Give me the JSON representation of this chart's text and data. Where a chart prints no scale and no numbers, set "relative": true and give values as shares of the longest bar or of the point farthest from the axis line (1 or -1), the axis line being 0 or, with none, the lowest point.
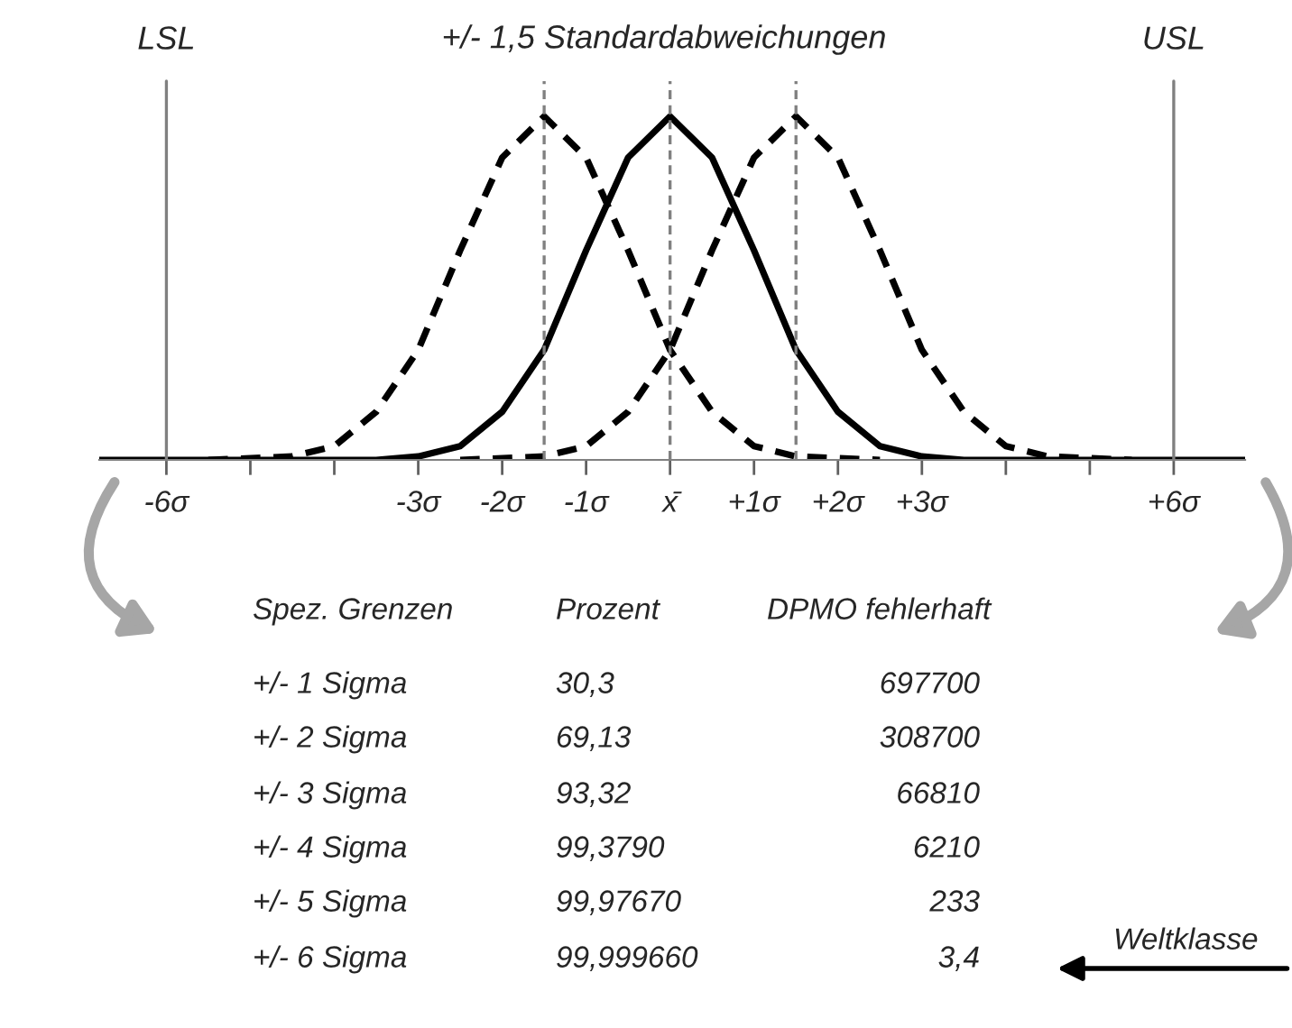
{
  "chart_data": {
    "type": "line",
    "relative": true,
    "series": [
      {
        "x": [
          -6.8,
          -4,
          -3.5,
          -3,
          -2.5,
          -2,
          -1.5,
          -1,
          -0.5,
          0,
          0.5,
          1,
          1.5,
          2,
          2.5,
          3,
          3.5,
          4,
          6.85
        ],
        "values": [
          0,
          0,
          0,
          0.01,
          0.04,
          0.14,
          0.32,
          0.61,
          0.88,
          1,
          0.88,
          0.61,
          0.32,
          0.14,
          0.04,
          0.01,
          0,
          0,
          0
        ],
        "color": "#000000",
        "line_style": "solid"
      },
      {
        "x": [
          -5.5,
          -4.5,
          -4,
          -3.5,
          -3,
          -2.5,
          -2,
          -1.5,
          -1,
          -0.5,
          0,
          0.5,
          1,
          1.5,
          2.5
        ],
        "values": [
          0,
          0.01,
          0.04,
          0.14,
          0.32,
          0.61,
          0.88,
          1,
          0.88,
          0.61,
          0.32,
          0.14,
          0.04,
          0.01,
          0
        ],
        "color": "#000000",
        "line_style": "dashed"
      },
      {
        "x": [
          -2.5,
          -1.5,
          -1,
          -0.5,
          0,
          0.5,
          1,
          1.5,
          2,
          2.5,
          3,
          3.5,
          4,
          4.5,
          5.5
        ],
        "values": [
          0,
          0.01,
          0.04,
          0.14,
          0.32,
          0.61,
          0.88,
          1,
          0.88,
          0.61,
          0.32,
          0.14,
          0.04,
          0.01,
          0
        ],
        "color": "#000000",
        "line_style": "dashed"
      }
    ],
    "xlim": [
      -6.8,
      6.85
    ],
    "xticks": [
      {
        "value": -6,
        "label": "-6σ"
      },
      {
        "value": -5,
        "label": null
      },
      {
        "value": -4,
        "label": null
      },
      {
        "value": -3,
        "label": "-3σ"
      },
      {
        "value": -2,
        "label": "-2σ"
      },
      {
        "value": -1,
        "label": "-1σ"
      },
      {
        "value": 0,
        "label": "x̄"
      },
      {
        "value": 1,
        "label": "+1σ"
      },
      {
        "value": 2,
        "label": "+2σ"
      },
      {
        "value": 3,
        "label": "+3σ"
      },
      {
        "value": 4,
        "label": null
      },
      {
        "value": 5,
        "label": null
      },
      {
        "value": 6,
        "label": "+6σ"
      }
    ],
    "ref_lines": [
      {
        "axis": "x",
        "value": -6,
        "label": "LSL",
        "color": "#808080",
        "line_style": "solid"
      },
      {
        "axis": "x",
        "value": 6,
        "label": "USL",
        "color": "#808080",
        "line_style": "solid"
      },
      {
        "axis": "x",
        "value": -1.5,
        "label": null,
        "color": "#808080",
        "line_style": "dashed"
      },
      {
        "axis": "x",
        "value": 0,
        "label": null,
        "color": "#808080",
        "line_style": "dashed"
      },
      {
        "axis": "x",
        "value": 1.5,
        "label": null,
        "color": "#808080",
        "line_style": "dashed"
      }
    ],
    "annotations": [
      "+/- 1,5 Standardabweichungen",
      "Spez. Grenzen",
      "Prozent",
      "DPMO fehlerhaft",
      "+/- 1 Sigma",
      "30,3",
      "697700",
      "+/- 2 Sigma",
      "69,13",
      "308700",
      "+/- 3 Sigma",
      "93,32",
      "66810",
      "+/- 4 Sigma",
      "99,3790",
      "6210",
      "+/- 5 Sigma",
      "99,97670",
      "233",
      "+/- 6 Sigma",
      "99,999660",
      "3,4",
      "Weltklasse"
    ],
    "grid": false,
    "legend": false
  }
}
